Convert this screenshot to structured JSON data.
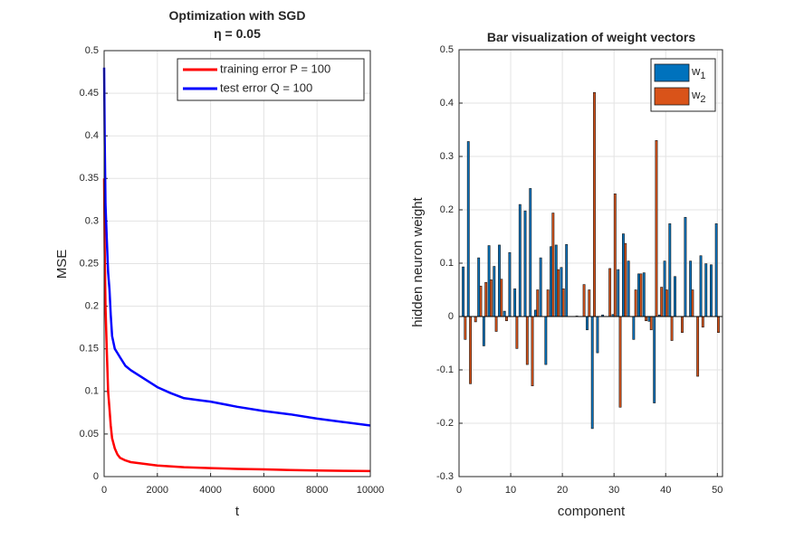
{
  "chart_data": [
    {
      "type": "line",
      "title": "Optimization with SGD",
      "subtitle": "η = 0.05",
      "xlabel": "t",
      "ylabel": "MSE",
      "xlim": [
        0,
        10000
      ],
      "ylim": [
        0,
        0.5
      ],
      "xticks": [
        "0",
        "2000",
        "4000",
        "6000",
        "8000",
        "10000"
      ],
      "yticks": [
        "0",
        "0.05",
        "0.1",
        "0.15",
        "0.2",
        "0.25",
        "0.3",
        "0.35",
        "0.4",
        "0.45",
        "0.5"
      ],
      "grid": true,
      "legend_position": "top-right",
      "series": [
        {
          "name": "training error P = 100",
          "color": "#ff0000",
          "x": [
            0,
            20,
            50,
            100,
            150,
            200,
            250,
            300,
            400,
            500,
            600,
            800,
            1000,
            1500,
            2000,
            3000,
            4000,
            5000,
            6000,
            7000,
            8000,
            9000,
            10000
          ],
          "y": [
            0.35,
            0.27,
            0.2,
            0.15,
            0.1,
            0.08,
            0.06,
            0.045,
            0.033,
            0.026,
            0.022,
            0.019,
            0.017,
            0.015,
            0.013,
            0.011,
            0.01,
            0.009,
            0.0085,
            0.0078,
            0.0072,
            0.0068,
            0.0065
          ]
        },
        {
          "name": "test error Q = 100",
          "color": "#0000ff",
          "x": [
            0,
            20,
            50,
            100,
            150,
            200,
            250,
            300,
            400,
            500,
            600,
            800,
            1000,
            1500,
            2000,
            2500,
            3000,
            3500,
            4000,
            5000,
            6000,
            7000,
            8000,
            9000,
            10000
          ],
          "y": [
            0.48,
            0.4,
            0.32,
            0.28,
            0.24,
            0.22,
            0.19,
            0.165,
            0.15,
            0.145,
            0.14,
            0.13,
            0.125,
            0.115,
            0.105,
            0.098,
            0.092,
            0.09,
            0.088,
            0.082,
            0.077,
            0.073,
            0.068,
            0.064,
            0.06
          ]
        }
      ]
    },
    {
      "type": "bar",
      "title": "Bar visualization of weight vectors",
      "xlabel": "component",
      "ylabel": "hidden neuron weight",
      "xlim": [
        0,
        51
      ],
      "ylim": [
        -0.3,
        0.5
      ],
      "xticks": [
        "0",
        "10",
        "20",
        "30",
        "40",
        "50"
      ],
      "yticks": [
        "-0.3",
        "-0.2",
        "-0.1",
        "0",
        "0.1",
        "0.2",
        "0.3",
        "0.4",
        "0.5"
      ],
      "grid": true,
      "legend_position": "top-right",
      "categories": [
        1,
        2,
        3,
        4,
        5,
        6,
        7,
        8,
        9,
        10,
        11,
        12,
        13,
        14,
        15,
        16,
        17,
        18,
        19,
        20,
        21,
        22,
        23,
        24,
        25,
        26,
        27,
        28,
        29,
        30,
        31,
        32,
        33,
        34,
        35,
        36,
        37,
        38,
        39,
        40,
        41,
        42,
        43,
        44,
        45,
        46,
        47,
        48,
        49,
        50
      ],
      "series": [
        {
          "name": "w1",
          "name_base": "w",
          "name_sub": "1",
          "color": "#0072bd",
          "values": [
            0.093,
            0.328,
            0.0,
            0.11,
            -0.055,
            0.133,
            0.094,
            0.134,
            0.01,
            0.12,
            0.052,
            0.21,
            0.198,
            0.24,
            0.012,
            0.11,
            -0.09,
            0.131,
            0.134,
            0.092,
            0.135,
            0.0,
            0.001,
            0.0,
            -0.025,
            -0.21,
            -0.068,
            0.003,
            0.0,
            0.004,
            0.088,
            0.155,
            0.104,
            -0.043,
            0.08,
            0.082,
            -0.009,
            -0.162,
            0.003,
            0.104,
            0.174,
            0.075,
            0.0,
            0.186,
            0.104,
            0.0,
            0.114,
            0.099,
            0.097,
            0.174
          ]
        },
        {
          "name": "w2",
          "name_base": "w",
          "name_sub": "2",
          "color": "#d95319",
          "values": [
            -0.043,
            -0.126,
            -0.01,
            0.057,
            0.064,
            0.069,
            -0.028,
            0.07,
            -0.008,
            0.0,
            -0.06,
            0.0,
            -0.09,
            -0.13,
            0.05,
            0.0,
            0.05,
            0.194,
            0.088,
            0.052,
            0.0,
            0.0,
            0.0,
            0.06,
            0.05,
            0.42,
            0.0,
            0.0,
            0.09,
            0.23,
            -0.17,
            0.137,
            0.0,
            0.05,
            0.08,
            -0.008,
            -0.025,
            0.33,
            0.055,
            0.05,
            -0.045,
            0.0,
            -0.03,
            0.0,
            0.05,
            -0.112,
            -0.02,
            0.0,
            0.0,
            -0.03
          ]
        }
      ]
    }
  ]
}
